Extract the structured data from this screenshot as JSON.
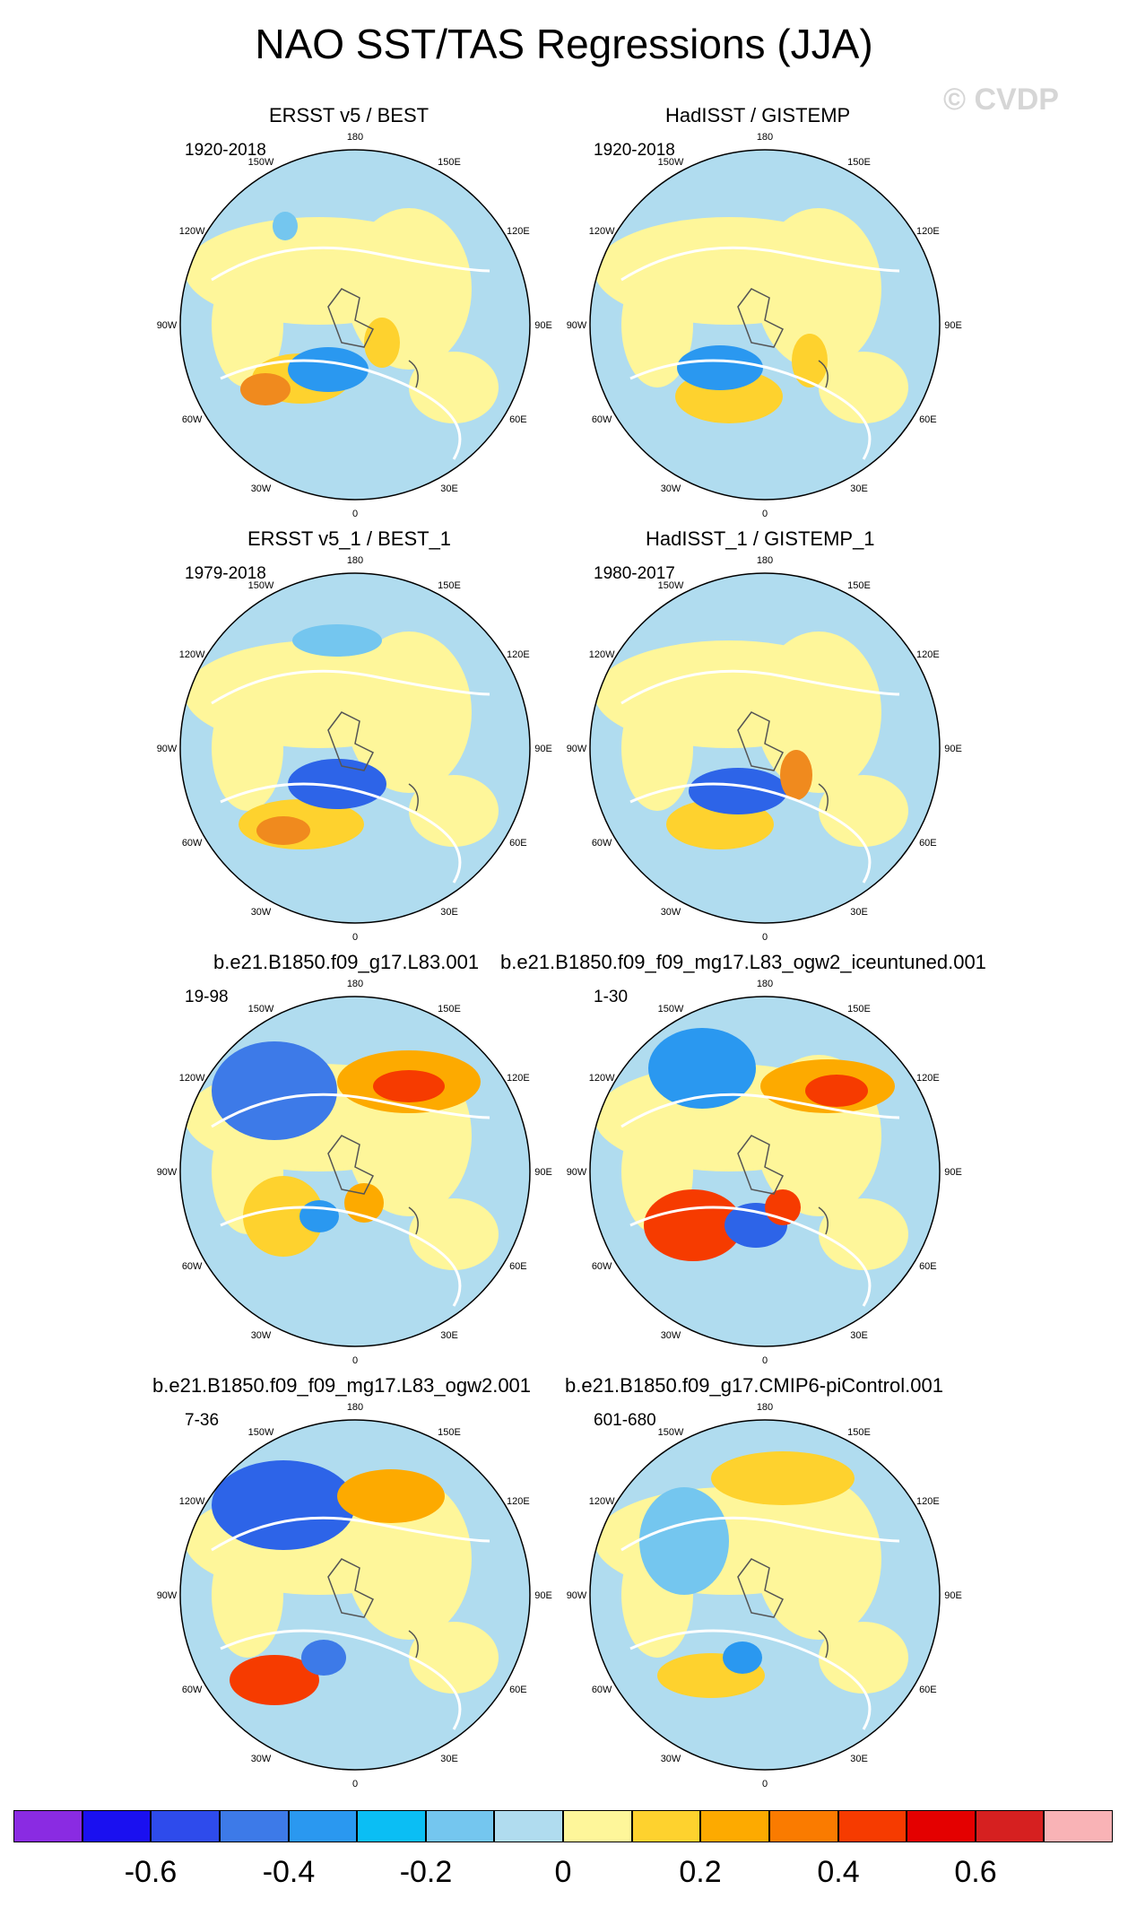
{
  "title": "NAO SST/TAS Regressions (JJA)",
  "watermark": "© CVDP",
  "colors": {
    "ocean_light_blue": "#b0dcef",
    "land_yellow": "#fef69a",
    "coast": "#ffffff",
    "contour_pos_strong": "#f08a1e",
    "contour_neg_strong": "#2d64e8"
  },
  "lon_labels": {
    "top": "180",
    "bottom": "0",
    "left": "90W",
    "right": "90E",
    "tl1": "150W",
    "tl2": "120W",
    "bl1": "60W",
    "bl2": "30W",
    "tr1": "150E",
    "tr2": "120E",
    "br1": "60E",
    "br2": "30E"
  },
  "panels": [
    {
      "title": "ERSST v5 / BEST",
      "period": "1920-2018"
    },
    {
      "title": "HadISST / GISTEMP",
      "period": "1920-2018"
    },
    {
      "title": "ERSST v5_1 / BEST_1",
      "period": "1979-2018"
    },
    {
      "title": "HadISST_1 / GISTEMP_1",
      "period": "1980-2017"
    },
    {
      "title": "b.e21.B1850.f09_g17.L83.001",
      "period": "19-98"
    },
    {
      "title": "b.e21.B1850.f09_f09_mg17.L83_ogw2_iceuntuned.001",
      "period": "1-30"
    },
    {
      "title": "b.e21.B1850.f09_f09_mg17.L83_ogw2.001",
      "period": "7-36"
    },
    {
      "title": "b.e21.B1850.f09_g17.CMIP6-piControl.001",
      "period": "601-680"
    }
  ],
  "colorbar": {
    "colors": [
      "#8a2be2",
      "#1a10f0",
      "#2e4bec",
      "#3d7ae8",
      "#2a98f0",
      "#0bbef4",
      "#74c6ef",
      "#b0dcef",
      "#fef69a",
      "#fed22e",
      "#fdaa00",
      "#fa7b00",
      "#f63b00",
      "#e40000",
      "#d62020",
      "#f9b3b6"
    ],
    "labels": [
      "-0.6",
      "-0.4",
      "-0.2",
      "0",
      "0.2",
      "0.4",
      "0.6"
    ]
  }
}
